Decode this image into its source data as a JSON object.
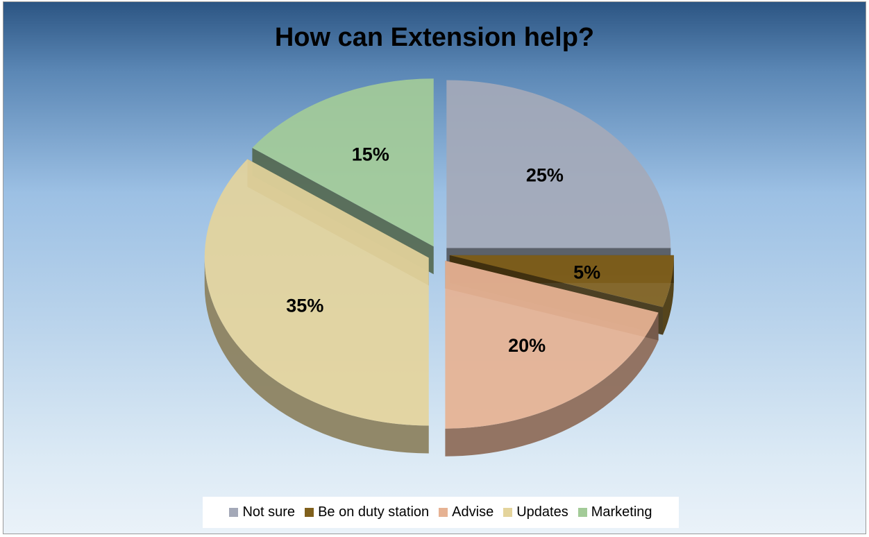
{
  "chart_data": {
    "type": "pie",
    "title": "How can Extension help?",
    "categories": [
      "Not sure",
      "Be on duty station",
      "Advise",
      "Updates",
      "Marketing"
    ],
    "values": [
      25,
      5,
      20,
      35,
      15
    ],
    "data_labels": [
      "25%",
      "5%",
      "20%",
      "35%",
      "15%"
    ],
    "colors": [
      "#a4a9b8",
      "#80601c",
      "#e6b293",
      "#e4d49c",
      "#a3cb98"
    ],
    "legend_position": "bottom",
    "exploded": true,
    "three_d": true
  }
}
